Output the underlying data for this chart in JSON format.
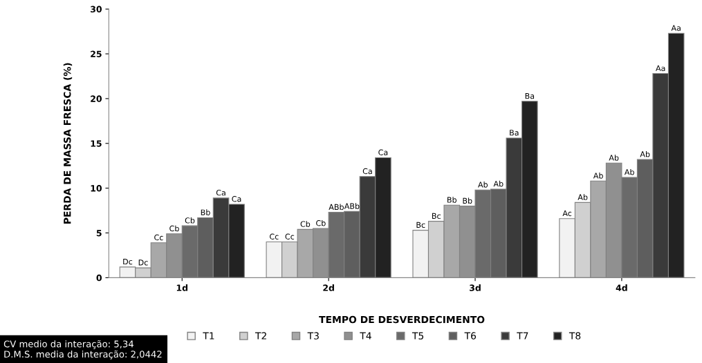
{
  "chart_data": {
    "type": "bar",
    "xlabel": "TEMPO DE DESVERDECIMENTO",
    "ylabel": "PERDA DE MASSA FRESCA (%)",
    "categories": [
      "1d",
      "2d",
      "3d",
      "4d"
    ],
    "ylim": [
      0,
      30
    ],
    "yticks": [
      0,
      5,
      10,
      15,
      20,
      25,
      30
    ],
    "grid": false,
    "legend": "bottom",
    "series": [
      {
        "name": "T1",
        "color": "#f2f2f2",
        "values": [
          1.2,
          4.0,
          5.3,
          6.6
        ],
        "value_labels": [
          "Dc",
          "Cc",
          "Bc",
          "Ac"
        ]
      },
      {
        "name": "T2",
        "color": "#d0d0d0",
        "values": [
          1.1,
          4.0,
          6.3,
          8.4
        ],
        "value_labels": [
          "Dc",
          "Cc",
          "Bc",
          "Ab"
        ]
      },
      {
        "name": "T3",
        "color": "#a8a8a8",
        "values": [
          3.9,
          5.4,
          8.1,
          10.8
        ],
        "value_labels": [
          "Cc",
          "Cb",
          "Bb",
          "Ab"
        ]
      },
      {
        "name": "T4",
        "color": "#909090",
        "values": [
          4.9,
          5.5,
          8.0,
          12.8
        ],
        "value_labels": [
          "Cb",
          "Cb",
          "Bb",
          "Ab"
        ]
      },
      {
        "name": "T5",
        "color": "#6a6a6a",
        "values": [
          5.8,
          7.3,
          9.8,
          11.2
        ],
        "value_labels": [
          "Cb",
          "ABb",
          "Ab",
          "Ab"
        ]
      },
      {
        "name": "T6",
        "color": "#5e5e5e",
        "values": [
          6.7,
          7.4,
          9.9,
          13.2
        ],
        "value_labels": [
          "Bb",
          "ABb",
          "Ab",
          "Ab"
        ]
      },
      {
        "name": "T7",
        "color": "#3a3a3a",
        "values": [
          8.9,
          11.3,
          15.6,
          22.8
        ],
        "value_labels": [
          "Ca",
          "Ca",
          "Ba",
          "Aa"
        ]
      },
      {
        "name": "T8",
        "color": "#222222",
        "values": [
          8.2,
          13.4,
          19.7,
          27.3
        ],
        "value_labels": [
          "Ca",
          "Ca",
          "Ba",
          "Aa"
        ]
      }
    ],
    "annotations": [
      "CV medio da interação: 5,34",
      "D.M.S. media da interação: 2,0442"
    ]
  }
}
